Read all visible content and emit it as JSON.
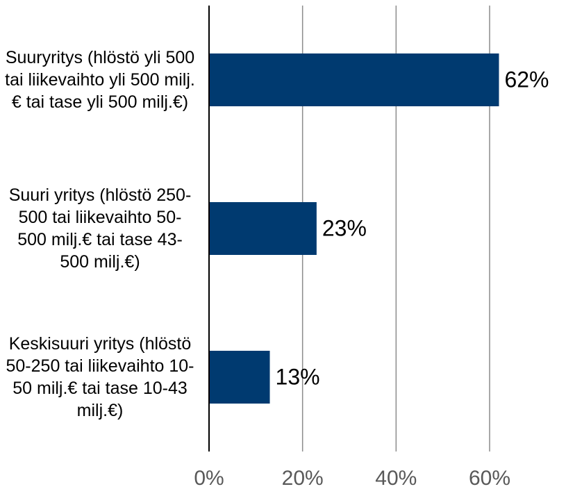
{
  "chart_data": {
    "type": "bar",
    "orientation": "horizontal",
    "categories": [
      "Suuryritys (hlöstö yli 500 tai liikevaihto yli 500 milj.€ tai tase yli 500 milj.€)",
      "Suuri yritys (hlöstö 250-500 tai liikevaihto 50-500 milj.€ tai tase 43-500 milj.€)",
      "Keskisuuri yritys (hlöstö 50-250 tai liikevaihto 10-50 milj.€ tai tase 10-43 milj.€)"
    ],
    "values": [
      62,
      23,
      13
    ],
    "value_labels": [
      "62%",
      "23%",
      "13%"
    ],
    "color": "#003a70",
    "xlim": [
      0,
      60
    ],
    "xticks": [
      {
        "value": 0,
        "label": "0%"
      },
      {
        "value": 20,
        "label": "20%"
      },
      {
        "value": 40,
        "label": "40%"
      },
      {
        "value": 60,
        "label": "60%"
      }
    ],
    "grid": true
  }
}
